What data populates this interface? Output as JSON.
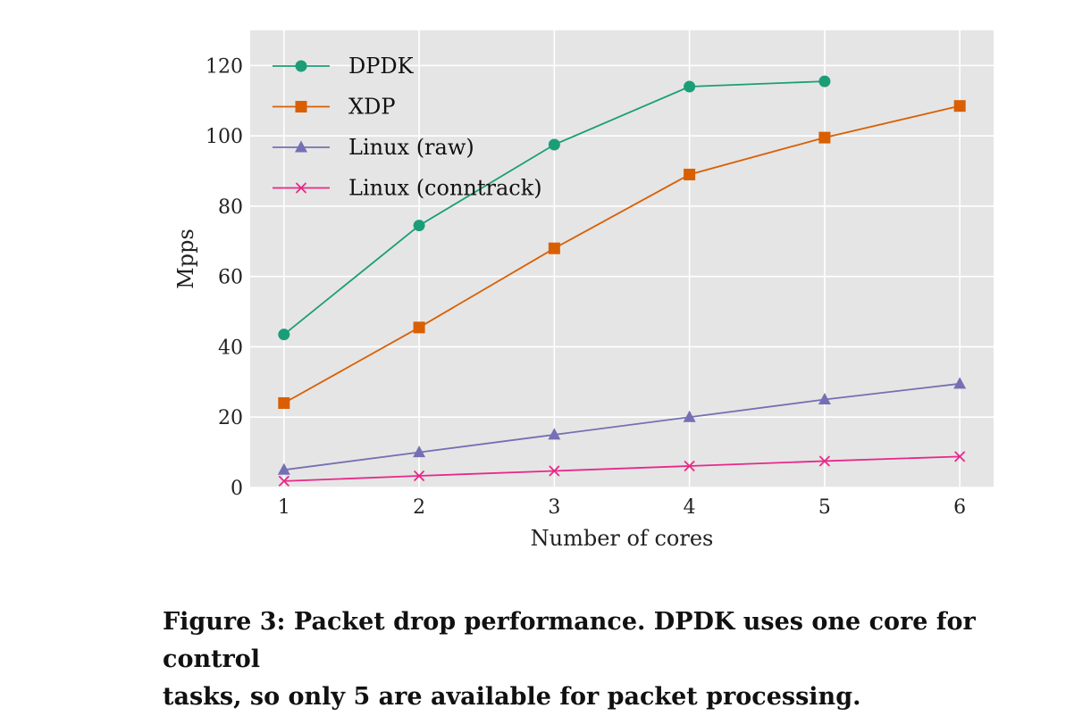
{
  "chart_data": {
    "type": "line",
    "xlabel": "Number of cores",
    "ylabel": "Mpps",
    "x_ticks": [
      1,
      2,
      3,
      4,
      5,
      6
    ],
    "y_ticks": [
      0,
      20,
      40,
      60,
      80,
      100,
      120
    ],
    "xlim": [
      0.75,
      6.25
    ],
    "ylim": [
      0,
      130
    ],
    "grid": true,
    "legend_position": "top-left",
    "series": [
      {
        "name": "DPDK",
        "color": "#1b9e77",
        "marker": "circle",
        "x": [
          1,
          2,
          3,
          4,
          5
        ],
        "values": [
          43.5,
          74.5,
          97.5,
          114,
          115.5
        ]
      },
      {
        "name": "XDP",
        "color": "#d95f02",
        "marker": "square",
        "x": [
          1,
          2,
          3,
          4,
          5,
          6
        ],
        "values": [
          24,
          45.5,
          68,
          89,
          99.5,
          108.5
        ]
      },
      {
        "name": "Linux (raw)",
        "color": "#7570b3",
        "marker": "triangle",
        "x": [
          1,
          2,
          3,
          4,
          5,
          6
        ],
        "values": [
          5,
          10,
          15,
          20,
          25,
          29.5
        ]
      },
      {
        "name": "Linux (conntrack)",
        "color": "#e7298a",
        "marker": "x",
        "x": [
          1,
          2,
          3,
          4,
          5,
          6
        ],
        "values": [
          1.8,
          3.3,
          4.7,
          6.1,
          7.5,
          8.8
        ]
      }
    ]
  },
  "caption": {
    "line1": "Figure 3:  Packet drop performance. DPDK uses one core for control",
    "line2": "tasks, so only 5 are available for packet processing."
  }
}
